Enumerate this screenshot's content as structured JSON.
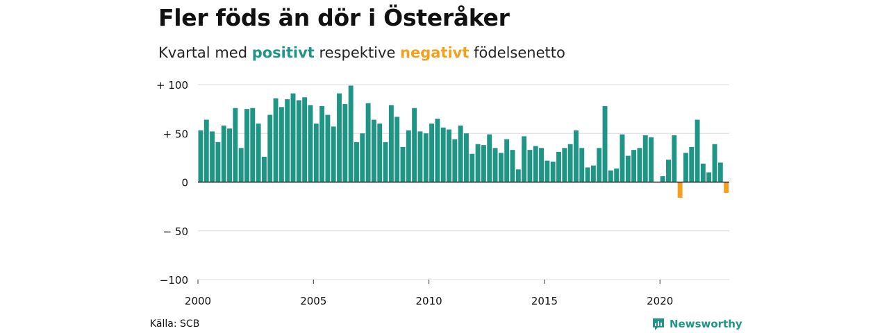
{
  "title": "Fler föds än dör i Österåker",
  "subtitle": {
    "prefix": "Kvartal med ",
    "positive_word": "positivt",
    "middle": " respektive ",
    "negative_word": "negativt",
    "suffix": " födelsenetto"
  },
  "colors": {
    "positive": "#1f9585",
    "negative": "#f5a01c",
    "grid": "#dcdcdc",
    "zero_line": "#222222"
  },
  "source": "Källa: SCB",
  "brand": {
    "name": "Newsworthy",
    "icon": "newsworthy-logo-icon"
  },
  "chart_data": {
    "type": "bar",
    "title": "Fler föds än dör i Österåker",
    "subtitle": "Kvartal med positivt respektive negativt födelsenetto",
    "x_unit": "quarter",
    "x_start": "2000Q1",
    "x_ticks": [
      2000,
      2005,
      2010,
      2015,
      2020
    ],
    "ylim": [
      -100,
      100
    ],
    "y_ticks": [
      100,
      50,
      0,
      -50,
      -100
    ],
    "y_tick_labels": [
      "+ 100",
      "+  50",
      "0",
      "− 50",
      "−100"
    ],
    "grid": true,
    "values": [
      53,
      64,
      52,
      41,
      58,
      55,
      76,
      35,
      75,
      76,
      60,
      26,
      69,
      86,
      77,
      85,
      91,
      84,
      87,
      79,
      60,
      78,
      69,
      57,
      91,
      80,
      99,
      41,
      50,
      81,
      64,
      60,
      41,
      79,
      67,
      36,
      53,
      76,
      52,
      50,
      60,
      65,
      56,
      54,
      44,
      58,
      50,
      29,
      39,
      38,
      49,
      35,
      30,
      44,
      33,
      13,
      47,
      33,
      37,
      35,
      22,
      21,
      31,
      35,
      39,
      53,
      35,
      15,
      17,
      35,
      78,
      12,
      14,
      49,
      27,
      33,
      35,
      48,
      46,
      0,
      6,
      23,
      48,
      -16,
      30,
      36,
      64,
      19,
      10,
      39,
      20,
      -11
    ]
  }
}
